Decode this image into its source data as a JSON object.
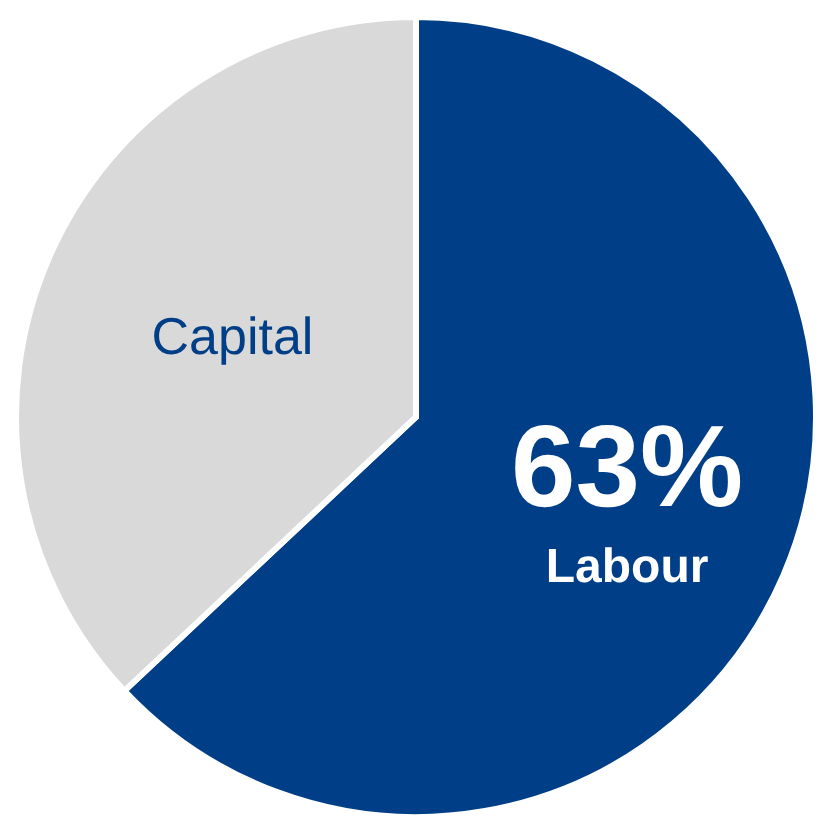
{
  "chart_data": {
    "type": "pie",
    "categories": [
      "Labour",
      "Capital"
    ],
    "values": [
      63,
      37
    ],
    "colors": [
      "#003f87",
      "#d9d9d9"
    ],
    "value_labels": [
      "63%",
      null
    ]
  }
}
